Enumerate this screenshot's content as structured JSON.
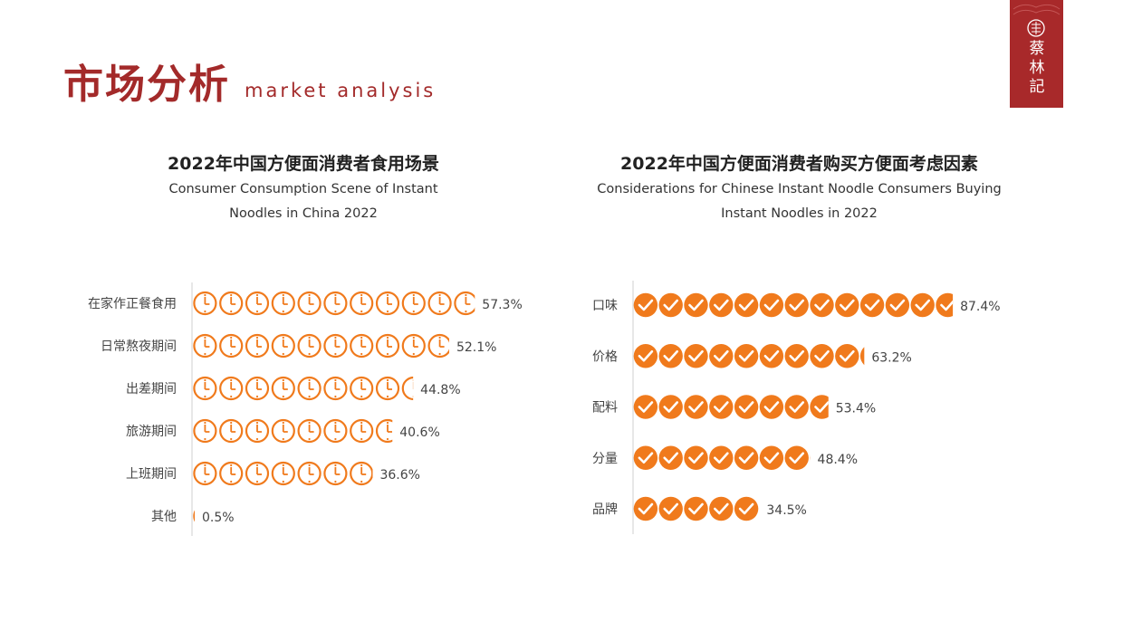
{
  "header": {
    "title_cn": "市场分析",
    "title_en": "market analysis"
  },
  "logo": {
    "text": "蔡林記"
  },
  "colors": {
    "accent_red": "#a8292a",
    "chart_orange": "#f07a1c"
  },
  "icons": {
    "left_chart_marker": "clock-icon",
    "right_chart_marker": "check-circle-icon"
  },
  "chart_data": [
    {
      "type": "bar",
      "title": "2022年中国方便面消费者食用场景",
      "subtitle_line1": "Consumer Consumption Scene of Instant",
      "subtitle_line2": "Noodles in China 2022",
      "categories": [
        "在家作正餐食用",
        "日常熬夜期间",
        "出差期间",
        "旅游期间",
        "上班期间",
        "其他"
      ],
      "values": [
        57.3,
        52.1,
        44.8,
        40.6,
        36.6,
        0.5
      ],
      "value_labels": [
        "57.3%",
        "52.1%",
        "44.8%",
        "40.6%",
        "36.6%",
        "0.5%"
      ],
      "unit": "%",
      "orientation": "horizontal",
      "marker": "clock-icon"
    },
    {
      "type": "bar",
      "title": "2022年中国方便面消费者购买方便面考虑因素",
      "subtitle_line1": "Considerations for Chinese Instant Noodle Consumers Buying",
      "subtitle_line2": "Instant Noodles in 2022",
      "categories": [
        "口味",
        "价格",
        "配料",
        "分量",
        "品牌"
      ],
      "values": [
        87.4,
        63.2,
        53.4,
        48.4,
        34.5
      ],
      "value_labels": [
        "87.4%",
        "63.2%",
        "53.4%",
        "48.4%",
        "34.5%"
      ],
      "unit": "%",
      "orientation": "horizontal",
      "marker": "check-circle-icon"
    }
  ]
}
